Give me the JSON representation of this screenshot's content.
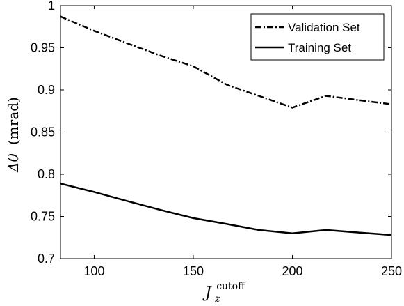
{
  "chart_data": {
    "type": "line",
    "title": "",
    "xlabel": {
      "base": "J",
      "subscript": "z",
      "superscript": "cutoff"
    },
    "ylabel": {
      "symbol": "Δθ",
      "unit": "(mrad)"
    },
    "xlim": [
      83,
      250
    ],
    "ylim": [
      0.7,
      1.0
    ],
    "xticks": [
      100,
      150,
      200,
      250
    ],
    "yticks": [
      0.7,
      0.75,
      0.8,
      0.85,
      0.9,
      0.95,
      1.0
    ],
    "ytick_labels": [
      "0.7",
      "0.75",
      "0.8",
      "0.85",
      "0.9",
      "0.95",
      "1"
    ],
    "grid": false,
    "legend_position": "top-right",
    "series": [
      {
        "name": "Validation Set",
        "style": "dash-dot",
        "color": "#000000",
        "x": [
          83,
          100,
          117,
          133,
          150,
          167,
          183,
          200,
          217,
          233,
          250
        ],
        "y": [
          0.987,
          0.97,
          0.955,
          0.941,
          0.928,
          0.906,
          0.893,
          0.879,
          0.893,
          0.888,
          0.883
        ]
      },
      {
        "name": "Training Set",
        "style": "solid",
        "color": "#000000",
        "x": [
          83,
          100,
          117,
          133,
          150,
          167,
          183,
          200,
          217,
          233,
          250
        ],
        "y": [
          0.789,
          0.779,
          0.768,
          0.758,
          0.748,
          0.741,
          0.734,
          0.73,
          0.734,
          0.731,
          0.728
        ]
      }
    ]
  }
}
